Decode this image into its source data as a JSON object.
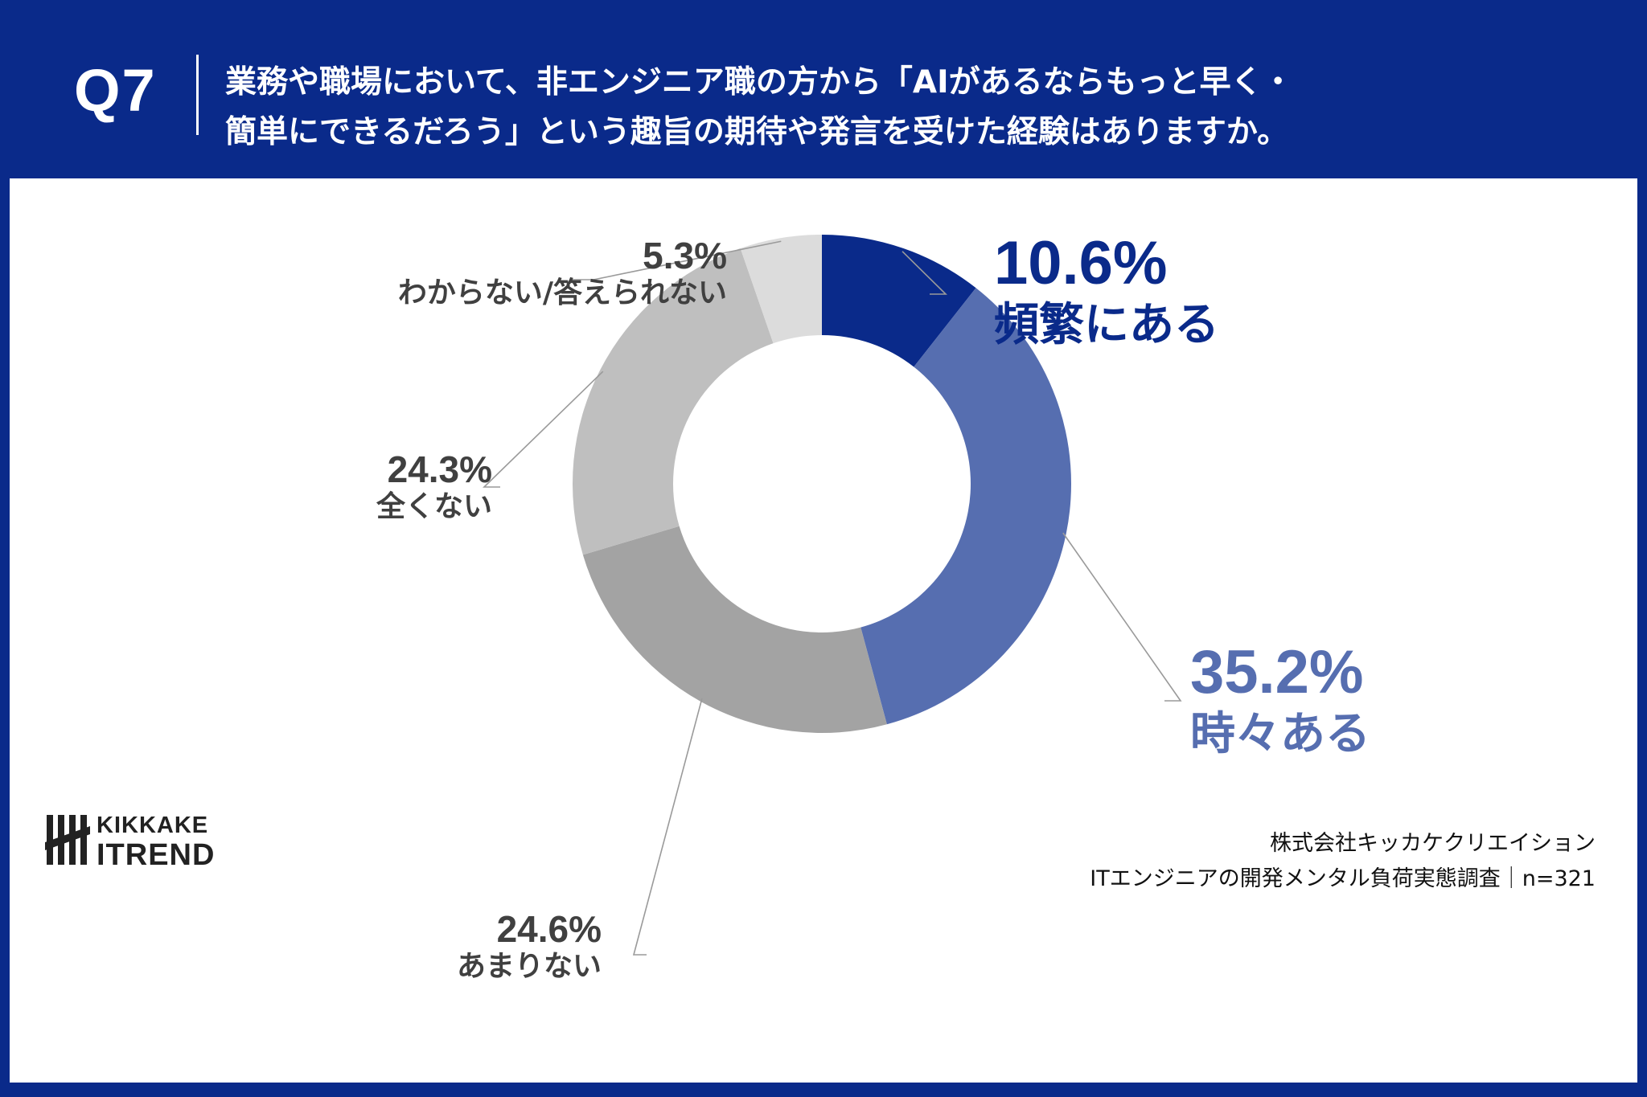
{
  "header": {
    "question_number": "Q7",
    "question_line1": "業務や職場において、非エンジニア職の方から「AIがあるならもっと早く・",
    "question_line2": "簡単にできるだろう」という趣旨の期待や発言を受けた経験はありますか。"
  },
  "colors": {
    "background": "#0a2a8a",
    "panel": "#ffffff"
  },
  "chart_data": {
    "type": "pie",
    "style": "donut",
    "slices": [
      {
        "label": "頻繁にある",
        "value": 10.6,
        "display": "10.6%",
        "color": "#0a2a8a"
      },
      {
        "label": "時々ある",
        "value": 35.2,
        "display": "35.2%",
        "color": "#566eb0"
      },
      {
        "label": "あまりない",
        "value": 24.6,
        "display": "24.6%",
        "color": "#a3a3a3"
      },
      {
        "label": "全くない",
        "value": 24.3,
        "display": "24.3%",
        "color": "#bfbfbf"
      },
      {
        "label": "わからない/答えられない",
        "value": 5.3,
        "display": "5.3%",
        "color": "#dcdcdc"
      }
    ]
  },
  "logo": {
    "line1": "KIKKAKE",
    "line2": "ITREND"
  },
  "credit": {
    "company": "株式会社キッカケクリエイション",
    "survey": "ITエンジニアの開発メンタル負荷実態調査｜n=321"
  }
}
